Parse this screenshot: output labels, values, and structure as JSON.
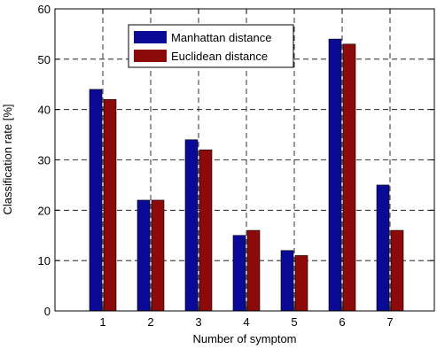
{
  "chart_data": {
    "type": "bar",
    "xlabel": "Number of symptom",
    "ylabel": "Classification rate [%]",
    "categories": [
      "1",
      "2",
      "3",
      "4",
      "5",
      "6",
      "7"
    ],
    "ylim": [
      0,
      60
    ],
    "yticks": [
      "0",
      "10",
      "20",
      "30",
      "40",
      "50",
      "60"
    ],
    "grid": true,
    "legend_position": "top-center",
    "series": [
      {
        "name": "Manhattan distance",
        "color": "#0a0a96",
        "values": [
          44,
          22,
          34,
          15,
          12,
          54,
          25
        ]
      },
      {
        "name": "Euclidean distance",
        "color": "#8c0a0a",
        "values": [
          42,
          22,
          32,
          16,
          11,
          53,
          16
        ]
      }
    ]
  }
}
